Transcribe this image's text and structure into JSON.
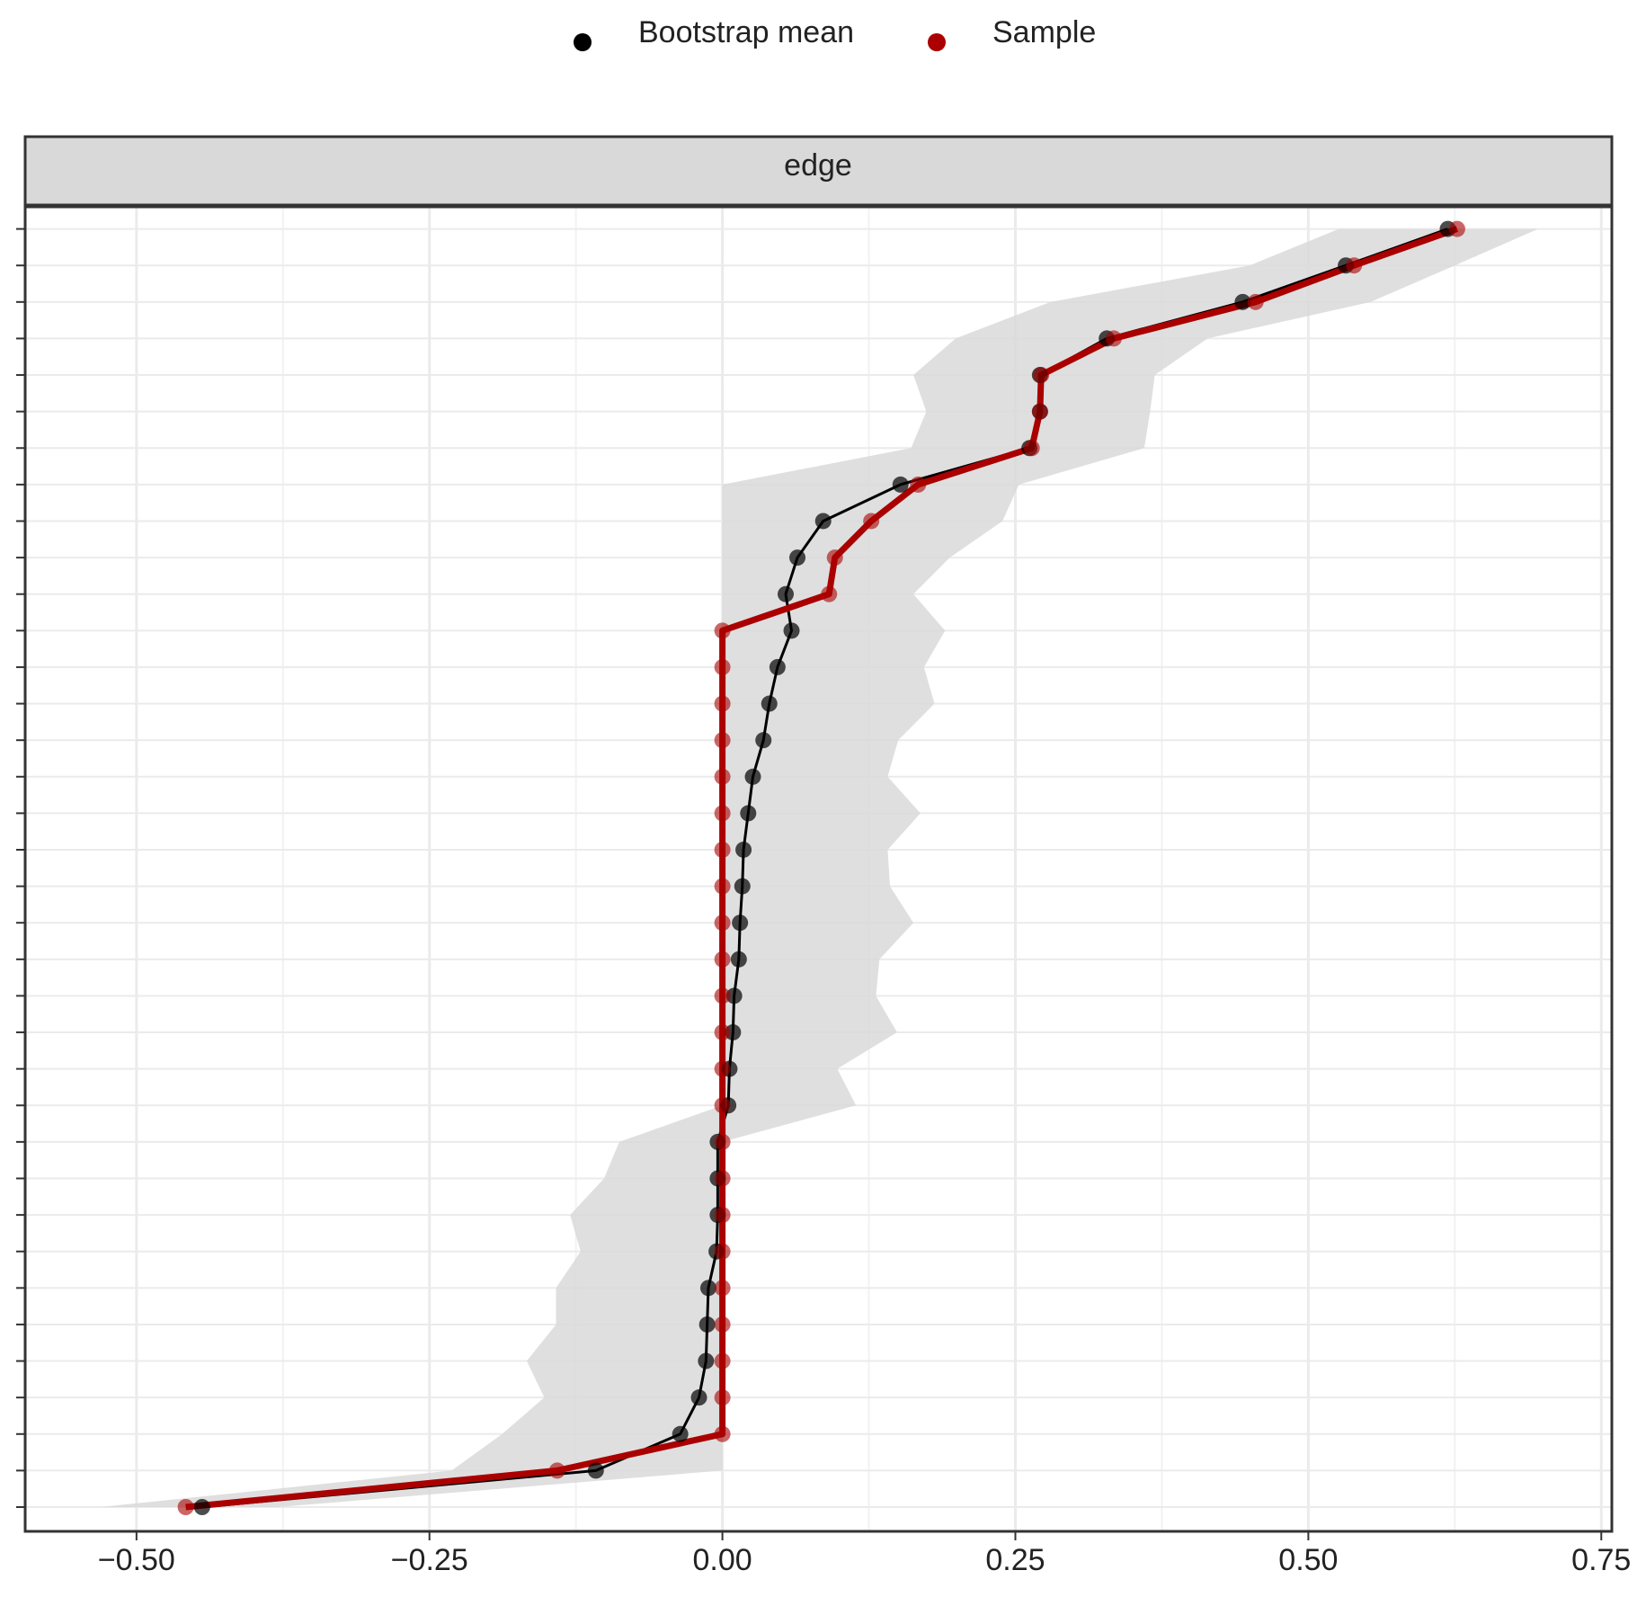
{
  "chart_data": {
    "type": "dotplot-horizontal",
    "facet": "edge",
    "categories": [
      null,
      null,
      null,
      null,
      null,
      null,
      null,
      null,
      null,
      null,
      null,
      null,
      null,
      null,
      null,
      null,
      null,
      null,
      null,
      null,
      null,
      null,
      null,
      null,
      null,
      null,
      null,
      null,
      null,
      null,
      null,
      null,
      null,
      null,
      null,
      null
    ],
    "series": [
      {
        "name": "Bootstrap mean",
        "color": "#000000",
        "values": [
          0.619,
          0.532,
          0.444,
          0.328,
          0.271,
          0.271,
          0.262,
          0.152,
          0.086,
          0.064,
          0.054,
          0.059,
          0.047,
          0.04,
          0.035,
          0.026,
          0.022,
          0.018,
          0.017,
          0.015,
          0.014,
          0.01,
          0.009,
          0.006,
          0.005,
          -0.004,
          -0.004,
          -0.004,
          -0.005,
          -0.012,
          -0.013,
          -0.014,
          -0.02,
          -0.036,
          -0.108,
          -0.444
        ]
      },
      {
        "name": "Sample",
        "color": "#aa0000",
        "values": [
          0.627,
          0.539,
          0.455,
          0.334,
          0.272,
          0.271,
          0.264,
          0.167,
          0.127,
          0.096,
          0.091,
          0,
          0,
          0,
          0,
          0,
          0,
          0,
          0,
          0,
          0,
          0,
          0,
          0,
          0,
          0,
          0,
          0,
          0,
          0,
          0,
          0,
          0,
          0,
          -0.141,
          -0.458
        ]
      }
    ],
    "band": {
      "color": "#d9d9d9",
      "lower": [
        0.526,
        0.45,
        0.28,
        0.199,
        0.163,
        0.174,
        0.161,
        0,
        0,
        0,
        0,
        0,
        0,
        0,
        0,
        0,
        0,
        0,
        0,
        0,
        0,
        0,
        0,
        0,
        0,
        -0.088,
        -0.101,
        -0.13,
        -0.121,
        -0.142,
        -0.142,
        -0.167,
        -0.152,
        -0.188,
        -0.231,
        -0.531
      ],
      "upper": [
        0.696,
        0.625,
        0.553,
        0.414,
        0.369,
        0.365,
        0.36,
        0.253,
        0.239,
        0.194,
        0.163,
        0.19,
        0.172,
        0.181,
        0.15,
        0.141,
        0.169,
        0.141,
        0.143,
        0.163,
        0.134,
        0.131,
        0.149,
        0.098,
        0.114,
        0,
        0,
        0,
        0,
        0,
        0,
        0,
        0,
        0,
        0,
        -0.38
      ]
    },
    "xlim": [
      -0.595,
      0.759
    ],
    "xticks": [
      {
        "value": -0.5,
        "label": "−0.50"
      },
      {
        "value": -0.25,
        "label": "−0.25"
      },
      {
        "value": 0,
        "label": "0.00"
      },
      {
        "value": 0.25,
        "label": "0.25"
      },
      {
        "value": 0.5,
        "label": "0.50"
      },
      {
        "value": 0.75,
        "label": "0.75"
      }
    ],
    "xminor": [
      -0.375,
      -0.125,
      0.125,
      0.375,
      0.625
    ],
    "grid": true,
    "legend": "top"
  }
}
